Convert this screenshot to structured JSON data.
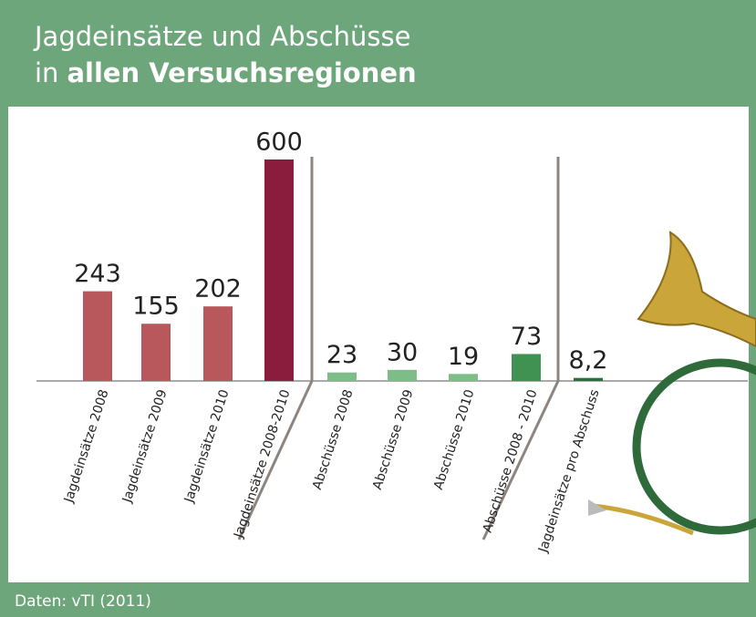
{
  "chart_data": {
    "type": "bar",
    "title": "Jagdeinsätze und Abschüsse",
    "title_line2": {
      "regular": "in",
      "bold": "allen Versuchsregionen"
    },
    "source": "Daten: vTI (2011)",
    "categories": [
      "Jagdeinsätze 2008",
      "Jagdeinsätze 2009",
      "Jagdeinsätze 2010",
      "Jagdeinsätze 2008-2010",
      "Abschüsse 2008",
      "Abschüsse 2009",
      "Abschüsse 2010",
      "Abschüsse 2008 - 2010",
      "Jagdeinsätze pro Abschuss"
    ],
    "values": [
      243,
      155,
      202,
      600,
      23,
      30,
      19,
      73,
      8.2
    ],
    "value_labels": [
      "243",
      "155",
      "202",
      "600",
      "23",
      "30",
      "19",
      "73",
      "8,2"
    ],
    "colors": [
      "#b9585c",
      "#b9585c",
      "#b9585c",
      "#8a1d3e",
      "#7dbd87",
      "#7dbd87",
      "#7dbd87",
      "#3f9252",
      "#2e6d3d"
    ],
    "ylim": [
      0,
      600
    ]
  }
}
